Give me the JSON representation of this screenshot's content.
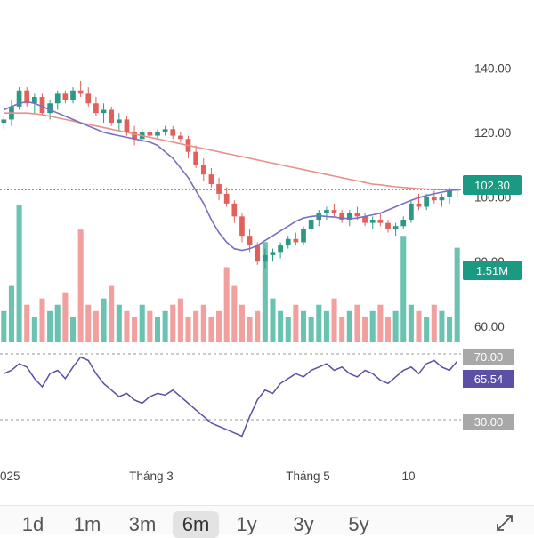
{
  "chart_data": {
    "type": "candlestick",
    "price_axis": {
      "ticks": [
        140,
        120,
        100,
        80,
        60
      ],
      "labels": [
        "140.00",
        "120.00",
        "100.00",
        "80.00",
        "60.00"
      ],
      "range": [
        55,
        150
      ]
    },
    "last_price": {
      "value": 102.3,
      "label": "102.30",
      "color": "#1a9a82"
    },
    "volume": {
      "last_label": "1.51M",
      "color_up": "#4fb8a2",
      "color_down": "#ef8f8c"
    },
    "x_labels": [
      "025",
      "Tháng 3",
      "Tháng 5",
      "10"
    ],
    "candles": [
      [
        123,
        125,
        121,
        124
      ],
      [
        124,
        130,
        122,
        128
      ],
      [
        128,
        134,
        127,
        133
      ],
      [
        133,
        134,
        128,
        129
      ],
      [
        129,
        132,
        126,
        131
      ],
      [
        131,
        132,
        125,
        126
      ],
      [
        126,
        130,
        124,
        129
      ],
      [
        129,
        133,
        127,
        132
      ],
      [
        132,
        133,
        129,
        130
      ],
      [
        130,
        134,
        129,
        133
      ],
      [
        133,
        136,
        131,
        132
      ],
      [
        132,
        134,
        128,
        129
      ],
      [
        129,
        131,
        125,
        126
      ],
      [
        126,
        129,
        123,
        127
      ],
      [
        127,
        128,
        122,
        123
      ],
      [
        123,
        126,
        120,
        124
      ],
      [
        124,
        125,
        119,
        120
      ],
      [
        120,
        122,
        116,
        118
      ],
      [
        118,
        121,
        117,
        120
      ],
      [
        120,
        121,
        117,
        119
      ],
      [
        119,
        121,
        118,
        120
      ],
      [
        120,
        122,
        119,
        121
      ],
      [
        121,
        122,
        118,
        119
      ],
      [
        119,
        120,
        117,
        118
      ],
      [
        118,
        119,
        112,
        114
      ],
      [
        114,
        116,
        109,
        110
      ],
      [
        110,
        112,
        105,
        107
      ],
      [
        107,
        109,
        103,
        104
      ],
      [
        104,
        106,
        99,
        101
      ],
      [
        101,
        103,
        97,
        98
      ],
      [
        98,
        99,
        92,
        94
      ],
      [
        94,
        95,
        86,
        88
      ],
      [
        88,
        90,
        83,
        85
      ],
      [
        85,
        86,
        79,
        80
      ],
      [
        80,
        84,
        78,
        82
      ],
      [
        82,
        84,
        80,
        83
      ],
      [
        83,
        86,
        81,
        85
      ],
      [
        85,
        88,
        84,
        87
      ],
      [
        87,
        89,
        85,
        86
      ],
      [
        86,
        91,
        85,
        90
      ],
      [
        90,
        94,
        89,
        93
      ],
      [
        93,
        96,
        91,
        95
      ],
      [
        95,
        97,
        93,
        96
      ],
      [
        96,
        98,
        94,
        95
      ],
      [
        95,
        96,
        92,
        93
      ],
      [
        93,
        96,
        91,
        95
      ],
      [
        95,
        97,
        93,
        94
      ],
      [
        94,
        95,
        91,
        92
      ],
      [
        92,
        94,
        90,
        93
      ],
      [
        93,
        95,
        91,
        92
      ],
      [
        92,
        93,
        89,
        90
      ],
      [
        90,
        92,
        88,
        91
      ],
      [
        91,
        94,
        90,
        93
      ],
      [
        93,
        99,
        92,
        98
      ],
      [
        98,
        101,
        96,
        97
      ],
      [
        97,
        101,
        96,
        100
      ],
      [
        100,
        102,
        98,
        99
      ],
      [
        99,
        101,
        97,
        100
      ],
      [
        100,
        103,
        98,
        102
      ],
      [
        102,
        103,
        100,
        102.3
      ]
    ],
    "ma_fast": [
      127,
      128,
      129,
      129.5,
      129,
      128,
      127,
      126,
      125,
      124,
      123,
      122,
      121,
      120,
      119.5,
      119,
      118.5,
      118,
      117.5,
      117,
      116,
      114,
      112,
      109,
      106,
      102,
      98,
      93,
      89,
      86,
      84,
      83.5,
      84,
      85,
      86.5,
      88,
      89.5,
      91,
      92.5,
      93.5,
      94,
      94.2,
      94,
      93.8,
      93.5,
      93.3,
      93.5,
      94,
      94.5,
      95,
      96,
      97,
      98,
      99,
      99.8,
      100.5,
      101,
      101.5,
      102,
      102.3
    ],
    "ma_slow": [
      126,
      126,
      126,
      126,
      125.8,
      125.5,
      125,
      124.5,
      124,
      123.5,
      123,
      122.5,
      122,
      121.5,
      121,
      120.5,
      120,
      119.5,
      119,
      118.5,
      118,
      117.5,
      117,
      116.5,
      116,
      115.5,
      115,
      114.5,
      114,
      113.5,
      113,
      112.5,
      112,
      111.5,
      111,
      110.5,
      110,
      109.5,
      109,
      108.5,
      108,
      107.5,
      107,
      106.5,
      106,
      105.5,
      105,
      104.5,
      104,
      103.8,
      103.5,
      103.2,
      103,
      102.8,
      102.6,
      102.5,
      102.4,
      102.3,
      102.3,
      102.3
    ],
    "volumes": [
      0.5,
      0.9,
      2.2,
      0.6,
      0.4,
      0.7,
      0.5,
      0.6,
      0.8,
      0.4,
      1.8,
      0.6,
      0.5,
      0.7,
      0.9,
      0.6,
      0.5,
      0.4,
      0.6,
      0.5,
      0.4,
      0.5,
      0.6,
      0.7,
      0.4,
      0.5,
      0.6,
      0.4,
      0.5,
      1.2,
      0.9,
      0.6,
      0.4,
      0.5,
      1.6,
      0.7,
      0.5,
      0.4,
      0.6,
      0.5,
      0.4,
      0.6,
      0.5,
      0.7,
      0.4,
      0.5,
      0.6,
      0.4,
      0.5,
      0.6,
      0.4,
      0.5,
      1.7,
      0.6,
      0.5,
      0.4,
      0.6,
      0.5,
      0.4,
      1.51
    ],
    "rsi": {
      "upper": 70,
      "lower": 30,
      "upper_label": "70.00",
      "lower_label": "30.00",
      "current_label": "65.54",
      "color": "#5b4fa6",
      "values": [
        58,
        60,
        64,
        62,
        55,
        50,
        58,
        60,
        55,
        62,
        68,
        66,
        58,
        52,
        48,
        44,
        46,
        42,
        40,
        44,
        46,
        45,
        48,
        44,
        40,
        36,
        32,
        28,
        26,
        24,
        22,
        20,
        32,
        42,
        48,
        46,
        52,
        55,
        58,
        56,
        60,
        62,
        64,
        60,
        62,
        58,
        56,
        60,
        58,
        54,
        52,
        56,
        60,
        62,
        58,
        64,
        66,
        62,
        60,
        65.54
      ]
    }
  },
  "range_bar": {
    "buttons": [
      "1d",
      "1m",
      "3m",
      "6m",
      "1y",
      "3y",
      "5y"
    ],
    "active": "6m",
    "expand_icon": "expand-arrows-icon"
  }
}
